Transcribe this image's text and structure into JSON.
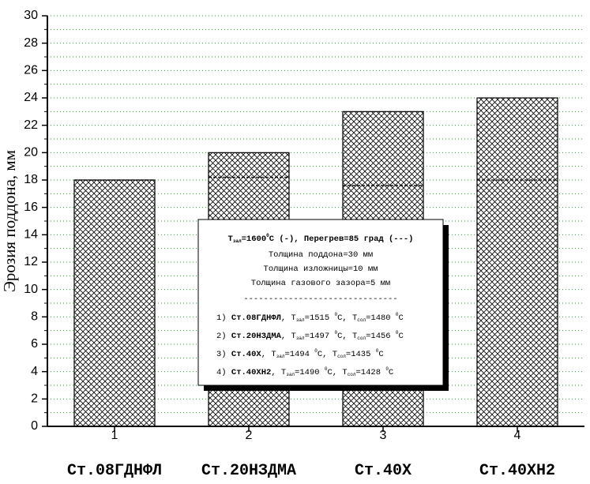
{
  "chart_data": {
    "type": "bar",
    "y_label": "Эрозия поддона, мм",
    "categories": [
      "1",
      "2",
      "3",
      "4"
    ],
    "category_names": [
      "Ст.08ГДНФЛ",
      "Ст.20НЗДМА",
      "Ст.40Х",
      "Ст.40ХН2"
    ],
    "series": [
      {
        "style": "hatch",
        "color": "#000000",
        "values": [
          18,
          20,
          23,
          24
        ]
      },
      {
        "style": "dashed",
        "color": "#000000",
        "values": [
          18,
          18.2,
          17.6,
          18
        ]
      }
    ],
    "xlim": [
      0.5,
      4.5
    ],
    "ylim": [
      0,
      30
    ],
    "yticks": [
      0,
      2,
      4,
      6,
      8,
      10,
      12,
      14,
      16,
      18,
      20,
      22,
      24,
      26,
      28,
      30
    ],
    "minor_yticks": [
      1,
      3,
      5,
      7,
      9,
      11,
      13,
      15,
      17,
      19,
      21,
      23,
      25,
      27,
      29
    ],
    "grid": true,
    "grid_color": "#2e9e2e",
    "annotation": {
      "header": [
        {
          "text": "T"
        },
        {
          "text": "зал",
          "pos": "sub"
        },
        {
          "text": "=1600"
        },
        {
          "text": "0",
          "pos": "sup"
        },
        {
          "text": "C (-), Перегрев=85 град (---)"
        }
      ],
      "lines": [
        "Толщина поддона=30 мм",
        "Толщина изложницы=10 мм",
        "Толщина газового зазора=5 мм",
        "-------------------------------"
      ],
      "items": [
        [
          {
            "text": "1)  "
          },
          {
            "text": "Ст.08ГДНФЛ",
            "bold": true
          },
          {
            "text": ", T"
          },
          {
            "text": "зал",
            "pos": "sub"
          },
          {
            "text": "=1515 "
          },
          {
            "text": "0",
            "pos": "sup"
          },
          {
            "text": "C, T"
          },
          {
            "text": "сол",
            "pos": "sub"
          },
          {
            "text": "=1480 "
          },
          {
            "text": "0",
            "pos": "sup"
          },
          {
            "text": "C"
          }
        ],
        [
          {
            "text": "2)  "
          },
          {
            "text": "Ст.20НЗДМА",
            "bold": true
          },
          {
            "text": ", T"
          },
          {
            "text": "зал",
            "pos": "sub"
          },
          {
            "text": "=1497 "
          },
          {
            "text": "0",
            "pos": "sup"
          },
          {
            "text": "C, T"
          },
          {
            "text": "сол",
            "pos": "sub"
          },
          {
            "text": "=1456 "
          },
          {
            "text": "0",
            "pos": "sup"
          },
          {
            "text": "C"
          }
        ],
        [
          {
            "text": "3)  "
          },
          {
            "text": "Ст.40Х",
            "bold": true
          },
          {
            "text": ", T"
          },
          {
            "text": "зал",
            "pos": "sub"
          },
          {
            "text": "=1494 "
          },
          {
            "text": "0",
            "pos": "sup"
          },
          {
            "text": "C, T"
          },
          {
            "text": "сол",
            "pos": "sub"
          },
          {
            "text": "=1435 "
          },
          {
            "text": "0",
            "pos": "sup"
          },
          {
            "text": "C"
          }
        ],
        [
          {
            "text": "4)  "
          },
          {
            "text": "Ст.40ХН2",
            "bold": true
          },
          {
            "text": ", T"
          },
          {
            "text": "зал",
            "pos": "sub"
          },
          {
            "text": "=1490 "
          },
          {
            "text": "0",
            "pos": "sup"
          },
          {
            "text": "C, T"
          },
          {
            "text": "сол",
            "pos": "sub"
          },
          {
            "text": "=1428 "
          },
          {
            "text": "0",
            "pos": "sup"
          },
          {
            "text": "C"
          }
        ]
      ]
    }
  }
}
